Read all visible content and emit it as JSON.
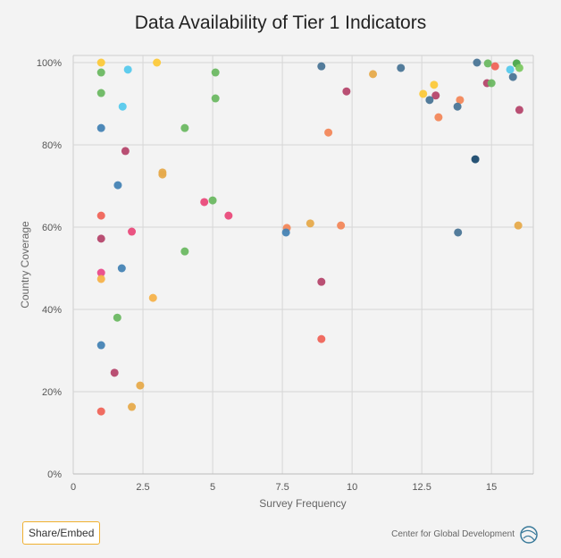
{
  "chart_data": {
    "type": "scatter",
    "title": "Data Availability of Tier 1 Indicators",
    "xlabel": "Survey Frequency",
    "ylabel": "Country Coverage",
    "xlim": [
      0,
      16.5
    ],
    "ylim": [
      0,
      100
    ],
    "xticks": [
      "0",
      "2.5",
      "5",
      "7.5",
      "10",
      "12.5",
      "15"
    ],
    "yticks": [
      "0%",
      "20%",
      "40%",
      "60%",
      "80%",
      "100%"
    ],
    "grid": true,
    "points": [
      {
        "x": 1.0,
        "y": 100,
        "color": "#fcc93a"
      },
      {
        "x": 1.0,
        "y": 97.6,
        "color": "#6cb862"
      },
      {
        "x": 1.0,
        "y": 92.6,
        "color": "#6cb862"
      },
      {
        "x": 1.0,
        "y": 84.1,
        "color": "#4583b4"
      },
      {
        "x": 1.0,
        "y": 62.8,
        "color": "#ef6459"
      },
      {
        "x": 1.0,
        "y": 57.2,
        "color": "#b5466b"
      },
      {
        "x": 1.0,
        "y": 48.9,
        "color": "#e94a8a"
      },
      {
        "x": 1.0,
        "y": 47.4,
        "color": "#f5b24a"
      },
      {
        "x": 1.0,
        "y": 31.3,
        "color": "#4583b4"
      },
      {
        "x": 1.0,
        "y": 15.2,
        "color": "#ef6459"
      },
      {
        "x": 1.96,
        "y": 98.3,
        "color": "#56c9ec"
      },
      {
        "x": 1.77,
        "y": 89.3,
        "color": "#56c9ec"
      },
      {
        "x": 1.87,
        "y": 78.5,
        "color": "#b5466b"
      },
      {
        "x": 1.6,
        "y": 70.2,
        "color": "#4583b4"
      },
      {
        "x": 2.1,
        "y": 58.9,
        "color": "#e94a7a"
      },
      {
        "x": 1.74,
        "y": 50.0,
        "color": "#4583b4"
      },
      {
        "x": 1.58,
        "y": 38.0,
        "color": "#6cb862"
      },
      {
        "x": 1.48,
        "y": 24.6,
        "color": "#b5466b"
      },
      {
        "x": 2.4,
        "y": 21.5,
        "color": "#e6aa4b"
      },
      {
        "x": 2.1,
        "y": 16.3,
        "color": "#e6aa4b"
      },
      {
        "x": 3.0,
        "y": 100,
        "color": "#fcc93a"
      },
      {
        "x": 3.2,
        "y": 73.3,
        "color": "#e6aa4b"
      },
      {
        "x": 3.2,
        "y": 72.8,
        "color": "#e6aa4b"
      },
      {
        "x": 2.86,
        "y": 42.8,
        "color": "#f5b24a"
      },
      {
        "x": 5.1,
        "y": 97.6,
        "color": "#6cb862"
      },
      {
        "x": 5.1,
        "y": 91.3,
        "color": "#6cb862"
      },
      {
        "x": 4.0,
        "y": 84.1,
        "color": "#6cb862"
      },
      {
        "x": 4.7,
        "y": 66.1,
        "color": "#e94a7a"
      },
      {
        "x": 5.0,
        "y": 66.5,
        "color": "#6cb862"
      },
      {
        "x": 5.57,
        "y": 62.8,
        "color": "#e94a7a"
      },
      {
        "x": 4.0,
        "y": 54.1,
        "color": "#6cb862"
      },
      {
        "x": 8.9,
        "y": 99.1,
        "color": "#4a7596"
      },
      {
        "x": 10.75,
        "y": 97.2,
        "color": "#e6aa4b"
      },
      {
        "x": 9.8,
        "y": 93.0,
        "color": "#b5466b"
      },
      {
        "x": 9.15,
        "y": 83.0,
        "color": "#f2875a"
      },
      {
        "x": 7.66,
        "y": 59.8,
        "color": "#f2875a"
      },
      {
        "x": 7.63,
        "y": 58.7,
        "color": "#4583b4"
      },
      {
        "x": 8.5,
        "y": 60.9,
        "color": "#e6aa4b"
      },
      {
        "x": 9.6,
        "y": 60.4,
        "color": "#f2875a"
      },
      {
        "x": 8.9,
        "y": 46.7,
        "color": "#b5466b"
      },
      {
        "x": 8.9,
        "y": 32.8,
        "color": "#ef6459"
      },
      {
        "x": 11.75,
        "y": 98.7,
        "color": "#4a7596"
      },
      {
        "x": 12.55,
        "y": 92.4,
        "color": "#fcc93a"
      },
      {
        "x": 12.94,
        "y": 94.6,
        "color": "#fcc93a"
      },
      {
        "x": 13.0,
        "y": 92.0,
        "color": "#b5466b"
      },
      {
        "x": 12.78,
        "y": 90.9,
        "color": "#4a7596"
      },
      {
        "x": 13.1,
        "y": 86.7,
        "color": "#f2875a"
      },
      {
        "x": 13.87,
        "y": 90.9,
        "color": "#f2875a"
      },
      {
        "x": 13.78,
        "y": 89.3,
        "color": "#4a7596"
      },
      {
        "x": 14.48,
        "y": 100,
        "color": "#4a7596"
      },
      {
        "x": 14.87,
        "y": 99.8,
        "color": "#6cb862"
      },
      {
        "x": 15.13,
        "y": 99.1,
        "color": "#ef6459"
      },
      {
        "x": 14.84,
        "y": 95.0,
        "color": "#b5466b"
      },
      {
        "x": 15.0,
        "y": 95.0,
        "color": "#6cb862"
      },
      {
        "x": 15.67,
        "y": 98.3,
        "color": "#56c9ec"
      },
      {
        "x": 15.9,
        "y": 99.8,
        "color": "#4aa74a"
      },
      {
        "x": 16.0,
        "y": 98.7,
        "color": "#7cc862"
      },
      {
        "x": 15.77,
        "y": 96.5,
        "color": "#4a7596"
      },
      {
        "x": 16.0,
        "y": 88.5,
        "color": "#b5466b"
      },
      {
        "x": 14.42,
        "y": 76.5,
        "color": "#1b4a6e"
      },
      {
        "x": 13.8,
        "y": 58.7,
        "color": "#4a7596"
      },
      {
        "x": 15.96,
        "y": 60.4,
        "color": "#e6aa4b"
      }
    ]
  },
  "share_label": "Share/Embed",
  "credit": "Center for Global Development"
}
